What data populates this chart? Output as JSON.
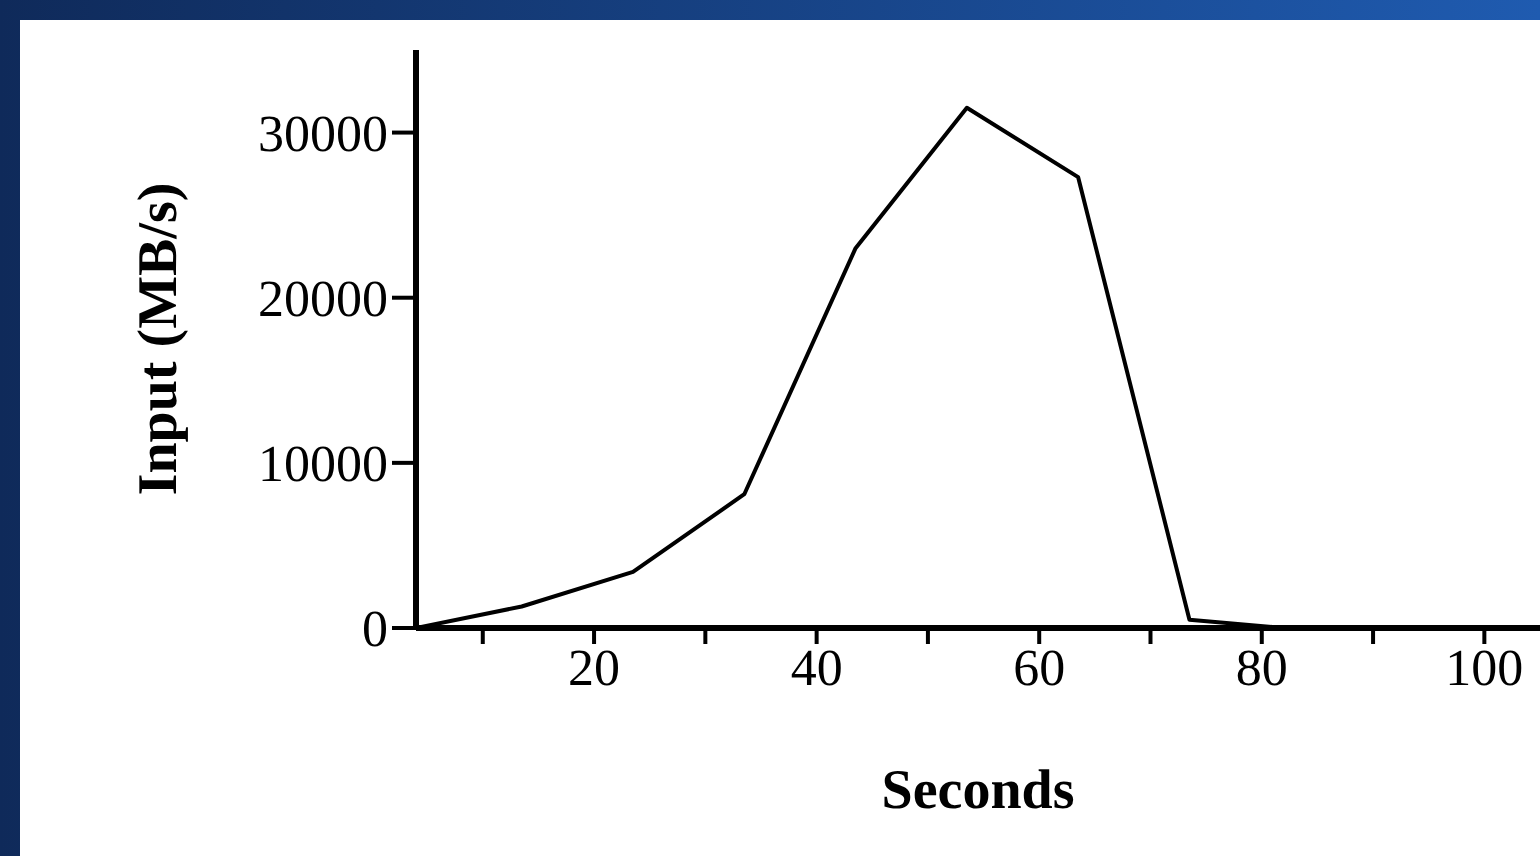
{
  "chart_data": {
    "type": "line",
    "xlabel": "Seconds",
    "ylabel": "Input (MB/s)",
    "x": [
      4,
      13.5,
      23.5,
      33.5,
      43.5,
      53.5,
      63.5,
      73.5,
      82
    ],
    "series": [
      {
        "color": "#000000",
        "values": [
          0,
          1300,
          3400,
          8100,
          23000,
          31500,
          27300,
          500,
          0
        ]
      }
    ],
    "xlim": [
      4,
      105
    ],
    "xticks": [
      {
        "value": 10,
        "label": null
      },
      20,
      {
        "value": 30,
        "label": null
      },
      40,
      {
        "value": 50,
        "label": null
      },
      60,
      {
        "value": 70,
        "label": null
      },
      80,
      {
        "value": 90,
        "label": null
      },
      100
    ],
    "ylim": [
      0,
      35000
    ],
    "yticks": [
      0,
      10000,
      20000,
      30000
    ],
    "grid": false,
    "legend": false,
    "marker": "none",
    "line_style": "solid"
  }
}
